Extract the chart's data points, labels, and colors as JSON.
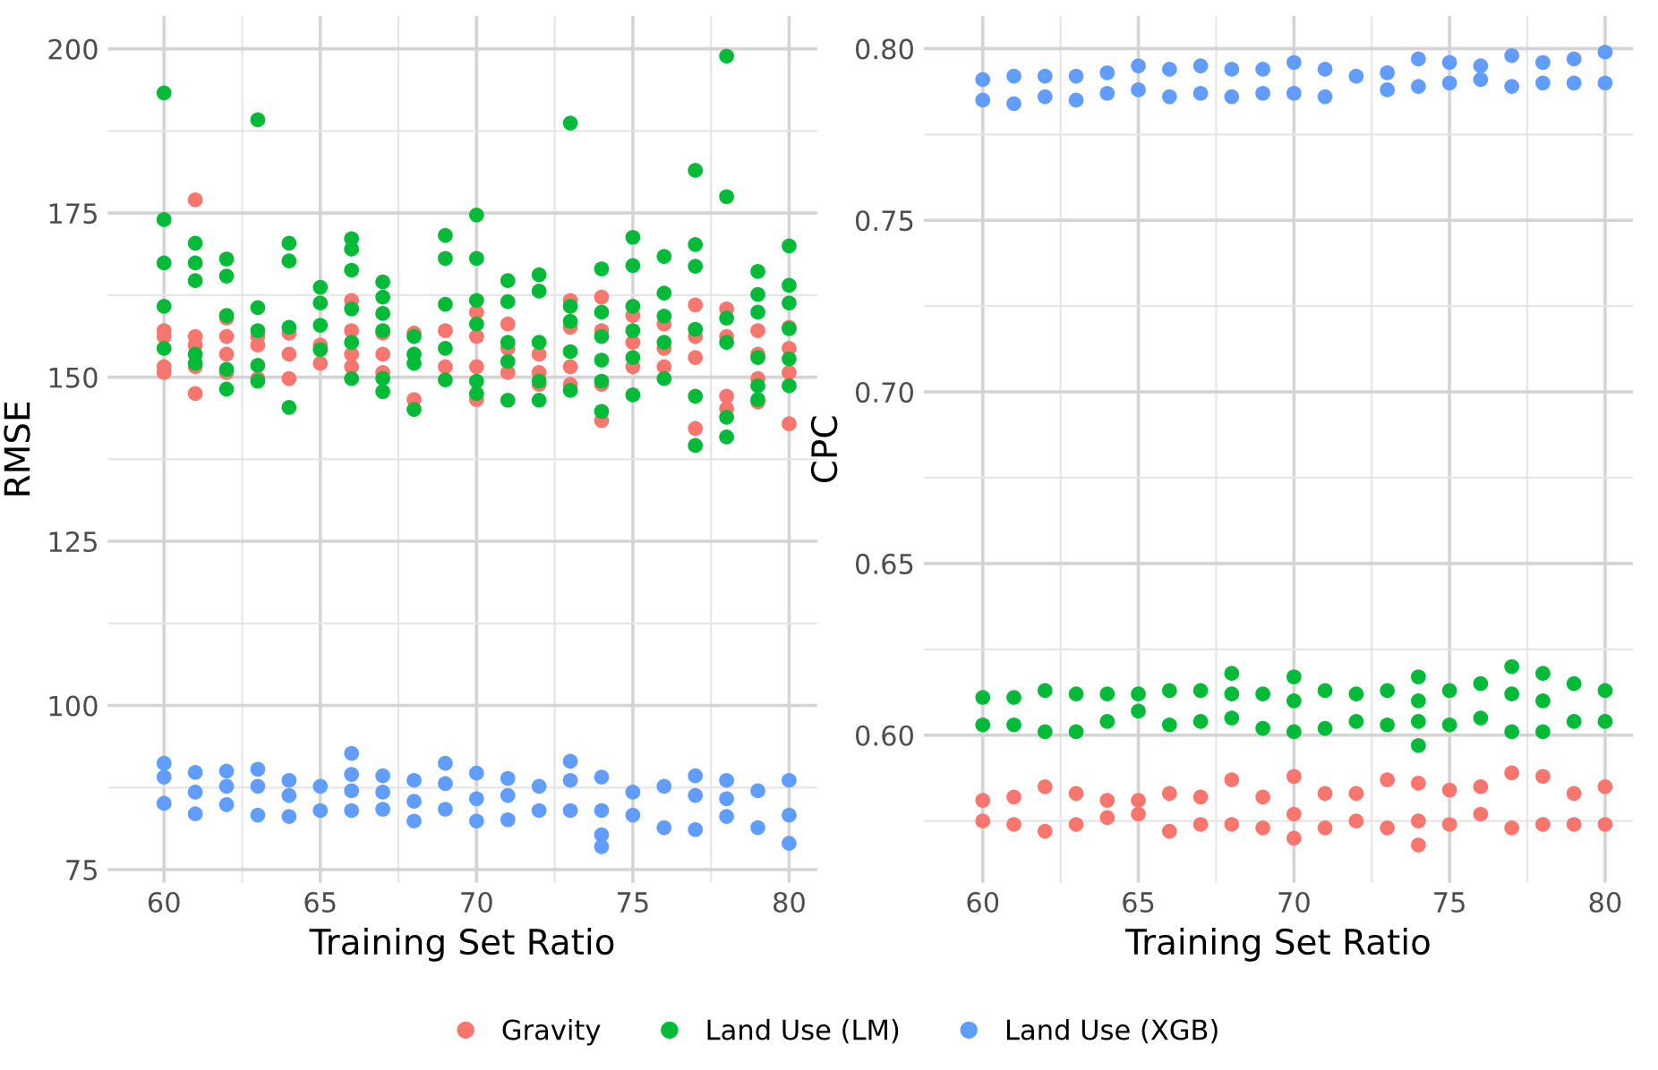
{
  "chart_data": [
    {
      "type": "scatter",
      "xlabel": "Training Set Ratio",
      "ylabel": "RMSE",
      "xlim": [
        58.2,
        80.9
      ],
      "ylim": [
        73,
        205
      ],
      "xticks": [
        60,
        {
          "value": 62.5,
          "label": null
        },
        65,
        {
          "value": 67.5,
          "label": null
        },
        70,
        {
          "value": 72.5,
          "label": null
        },
        75,
        {
          "value": 77.5,
          "label": null
        },
        80
      ],
      "yticks": [
        75,
        {
          "value": 87.5,
          "label": null
        },
        100,
        {
          "value": 112.5,
          "label": null
        },
        125,
        {
          "value": 137.5,
          "label": null
        },
        150,
        {
          "value": 162.5,
          "label": null
        },
        175,
        {
          "value": 187.5,
          "label": null
        },
        200
      ],
      "grid": true,
      "marker": "circle",
      "legend": "bottom",
      "series": [
        {
          "name": "Gravity",
          "color": "#f8766d",
          "x": [
            60,
            60,
            60,
            60,
            61,
            61,
            61,
            61,
            61,
            62,
            62,
            62,
            62,
            63,
            63,
            63,
            64,
            64,
            64,
            65,
            65,
            66,
            66,
            66,
            66,
            67,
            67,
            67,
            68,
            68,
            69,
            69,
            70,
            70,
            70,
            70,
            71,
            71,
            71,
            72,
            72,
            72,
            73,
            73,
            73,
            73,
            74,
            74,
            74,
            74,
            75,
            75,
            75,
            76,
            76,
            76,
            77,
            77,
            77,
            77,
            78,
            78,
            78,
            78,
            79,
            79,
            79,
            79,
            80,
            80,
            80,
            80
          ],
          "values": [
            157.1,
            156.2,
            151.6,
            150.7,
            177.0,
            156.2,
            154.9,
            151.6,
            147.5,
            159.0,
            156.2,
            153.5,
            150.7,
            156.2,
            154.9,
            149.8,
            156.7,
            153.5,
            149.8,
            154.9,
            152.1,
            161.7,
            157.1,
            153.5,
            151.6,
            156.7,
            153.5,
            150.7,
            156.7,
            146.6,
            157.1,
            151.6,
            159.9,
            156.2,
            151.6,
            146.6,
            158.1,
            154.4,
            150.7,
            153.5,
            150.7,
            148.9,
            161.7,
            157.6,
            151.6,
            148.9,
            162.2,
            157.1,
            148.9,
            143.4,
            159.4,
            155.3,
            151.6,
            158.1,
            154.4,
            151.6,
            161.0,
            156.2,
            153.0,
            142.2,
            160.4,
            156.2,
            147.1,
            145.2,
            157.1,
            153.5,
            149.8,
            146.2,
            157.6,
            154.4,
            150.7,
            142.9
          ]
        },
        {
          "name": "Land Use (LM)",
          "color": "#00ba38",
          "x": [
            60,
            60,
            60,
            60,
            60,
            61,
            61,
            61,
            61,
            61,
            62,
            62,
            62,
            62,
            62,
            63,
            63,
            63,
            63,
            63,
            64,
            64,
            64,
            64,
            65,
            65,
            65,
            65,
            66,
            66,
            66,
            66,
            66,
            66,
            67,
            67,
            67,
            67,
            67,
            67,
            68,
            68,
            68,
            68,
            69,
            69,
            69,
            69,
            69,
            70,
            70,
            70,
            70,
            70,
            70,
            71,
            71,
            71,
            71,
            71,
            72,
            72,
            72,
            72,
            72,
            73,
            73,
            73,
            73,
            73,
            74,
            74,
            74,
            74,
            74,
            74,
            75,
            75,
            75,
            75,
            75,
            75,
            76,
            76,
            76,
            76,
            76,
            77,
            77,
            77,
            77,
            77,
            77,
            78,
            78,
            78,
            78,
            78,
            78,
            79,
            79,
            79,
            79,
            79,
            79,
            80,
            80,
            80,
            80,
            80,
            80
          ],
          "values": [
            193.3,
            174.0,
            167.4,
            160.8,
            154.4,
            170.4,
            167.4,
            164.7,
            153.5,
            152.1,
            168.0,
            165.4,
            159.4,
            151.2,
            148.2,
            189.2,
            160.6,
            157.1,
            151.8,
            149.4,
            170.4,
            167.7,
            157.6,
            145.4,
            163.7,
            161.3,
            157.9,
            154.2,
            171.1,
            169.5,
            166.3,
            160.4,
            155.3,
            149.8,
            164.5,
            162.2,
            159.7,
            157.1,
            149.8,
            147.8,
            156.2,
            153.5,
            152.1,
            145.1,
            171.6,
            168.1,
            161.1,
            154.4,
            149.6,
            174.7,
            168.1,
            161.7,
            158.1,
            149.4,
            147.5,
            164.7,
            161.5,
            155.3,
            152.4,
            146.5,
            165.6,
            163.1,
            155.3,
            149.4,
            146.5,
            188.7,
            160.8,
            158.5,
            153.9,
            148.0,
            166.5,
            159.9,
            156.2,
            152.6,
            149.4,
            144.8,
            171.3,
            167.0,
            160.8,
            157.1,
            153.0,
            147.3,
            168.4,
            162.8,
            159.3,
            155.3,
            149.8,
            181.5,
            170.2,
            166.9,
            157.3,
            147.1,
            139.6,
            198.9,
            177.5,
            159.0,
            155.3,
            143.9,
            140.9,
            166.1,
            162.6,
            159.9,
            153.0,
            148.7,
            146.6,
            170.0,
            164.0,
            161.3,
            157.4,
            152.8,
            148.7
          ]
        },
        {
          "name": "Land Use (XGB)",
          "color": "#619cff",
          "x": [
            60,
            60,
            60,
            61,
            61,
            61,
            62,
            62,
            62,
            63,
            63,
            63,
            64,
            64,
            64,
            65,
            65,
            66,
            66,
            66,
            66,
            67,
            67,
            67,
            68,
            68,
            68,
            69,
            69,
            69,
            70,
            70,
            70,
            71,
            71,
            71,
            72,
            72,
            73,
            73,
            73,
            74,
            74,
            74,
            74,
            75,
            75,
            76,
            76,
            77,
            77,
            77,
            78,
            78,
            78,
            79,
            79,
            80,
            80,
            80
          ],
          "values": [
            91.2,
            89.1,
            85.1,
            89.8,
            86.8,
            83.5,
            90.0,
            87.7,
            84.9,
            90.3,
            87.7,
            83.3,
            88.6,
            86.3,
            83.1,
            87.7,
            84.0,
            92.7,
            89.5,
            87.0,
            84.0,
            89.3,
            86.8,
            84.2,
            88.6,
            85.4,
            82.4,
            91.2,
            88.1,
            84.2,
            89.7,
            85.8,
            82.4,
            88.9,
            86.3,
            82.6,
            87.7,
            84.0,
            91.5,
            88.6,
            84.0,
            89.1,
            84.0,
            80.3,
            78.5,
            86.8,
            83.3,
            87.7,
            81.4,
            89.3,
            86.3,
            81.1,
            88.6,
            85.8,
            83.1,
            87.0,
            81.4,
            88.6,
            83.3,
            79.0
          ]
        }
      ]
    },
    {
      "type": "scatter",
      "xlabel": "Training Set Ratio",
      "ylabel": "CPC",
      "xlim": [
        58.1,
        80.9
      ],
      "ylim": [
        0.557,
        0.8095
      ],
      "xticks": [
        60,
        {
          "value": 62.5,
          "label": null
        },
        65,
        {
          "value": 67.5,
          "label": null
        },
        70,
        {
          "value": 72.5,
          "label": null
        },
        75,
        {
          "value": 77.5,
          "label": null
        },
        80
      ],
      "yticks": [
        {
          "value": 0.575,
          "label": null
        },
        {
          "value": 0.6,
          "label": "0.60"
        },
        {
          "value": 0.625,
          "label": null
        },
        {
          "value": 0.65,
          "label": "0.65"
        },
        {
          "value": 0.675,
          "label": null
        },
        {
          "value": 0.7,
          "label": "0.70"
        },
        {
          "value": 0.725,
          "label": null
        },
        {
          "value": 0.75,
          "label": "0.75"
        },
        {
          "value": 0.775,
          "label": null
        },
        {
          "value": 0.8,
          "label": "0.80"
        }
      ],
      "grid": true,
      "marker": "circle",
      "series": [
        {
          "name": "Gravity",
          "color": "#f8766d",
          "x": [
            60,
            60,
            61,
            61,
            62,
            62,
            63,
            63,
            64,
            64,
            65,
            65,
            66,
            66,
            67,
            67,
            68,
            68,
            69,
            69,
            70,
            70,
            70,
            71,
            71,
            72,
            72,
            73,
            73,
            74,
            74,
            74,
            75,
            75,
            76,
            76,
            77,
            77,
            78,
            78,
            79,
            79,
            80,
            80
          ],
          "values": [
            0.581,
            0.575,
            0.582,
            0.574,
            0.585,
            0.572,
            0.583,
            0.574,
            0.581,
            0.576,
            0.581,
            0.577,
            0.583,
            0.572,
            0.582,
            0.574,
            0.587,
            0.574,
            0.582,
            0.573,
            0.588,
            0.577,
            0.57,
            0.583,
            0.573,
            0.583,
            0.575,
            0.587,
            0.573,
            0.586,
            0.575,
            0.568,
            0.584,
            0.574,
            0.585,
            0.577,
            0.589,
            0.573,
            0.588,
            0.574,
            0.583,
            0.574,
            0.585,
            0.574
          ]
        },
        {
          "name": "Land Use (LM)",
          "color": "#00ba38",
          "x": [
            60,
            60,
            61,
            61,
            62,
            62,
            63,
            63,
            64,
            64,
            65,
            65,
            66,
            66,
            67,
            67,
            68,
            68,
            68,
            69,
            69,
            70,
            70,
            70,
            71,
            71,
            72,
            72,
            73,
            73,
            74,
            74,
            74,
            74,
            75,
            75,
            76,
            76,
            77,
            77,
            77,
            78,
            78,
            78,
            79,
            79,
            80,
            80
          ],
          "values": [
            0.611,
            0.603,
            0.611,
            0.603,
            0.613,
            0.601,
            0.612,
            0.601,
            0.612,
            0.604,
            0.612,
            0.607,
            0.613,
            0.603,
            0.613,
            0.604,
            0.618,
            0.612,
            0.605,
            0.612,
            0.602,
            0.617,
            0.61,
            0.601,
            0.613,
            0.602,
            0.612,
            0.604,
            0.613,
            0.603,
            0.617,
            0.61,
            0.604,
            0.597,
            0.613,
            0.603,
            0.615,
            0.605,
            0.62,
            0.612,
            0.601,
            0.618,
            0.61,
            0.601,
            0.615,
            0.604,
            0.613,
            0.604
          ]
        },
        {
          "name": "Land Use (XGB)",
          "color": "#619cff",
          "x": [
            60,
            60,
            61,
            61,
            62,
            62,
            63,
            63,
            64,
            64,
            65,
            65,
            66,
            66,
            67,
            67,
            68,
            68,
            69,
            69,
            70,
            70,
            71,
            71,
            72,
            73,
            73,
            74,
            74,
            75,
            75,
            76,
            76,
            77,
            77,
            78,
            78,
            79,
            79,
            80,
            80
          ],
          "values": [
            0.791,
            0.785,
            0.792,
            0.784,
            0.792,
            0.786,
            0.792,
            0.785,
            0.793,
            0.787,
            0.795,
            0.788,
            0.794,
            0.786,
            0.795,
            0.787,
            0.794,
            0.786,
            0.794,
            0.787,
            0.796,
            0.787,
            0.794,
            0.786,
            0.792,
            0.793,
            0.788,
            0.797,
            0.789,
            0.796,
            0.79,
            0.795,
            0.791,
            0.798,
            0.789,
            0.796,
            0.79,
            0.797,
            0.79,
            0.799,
            0.79
          ]
        }
      ]
    }
  ]
}
